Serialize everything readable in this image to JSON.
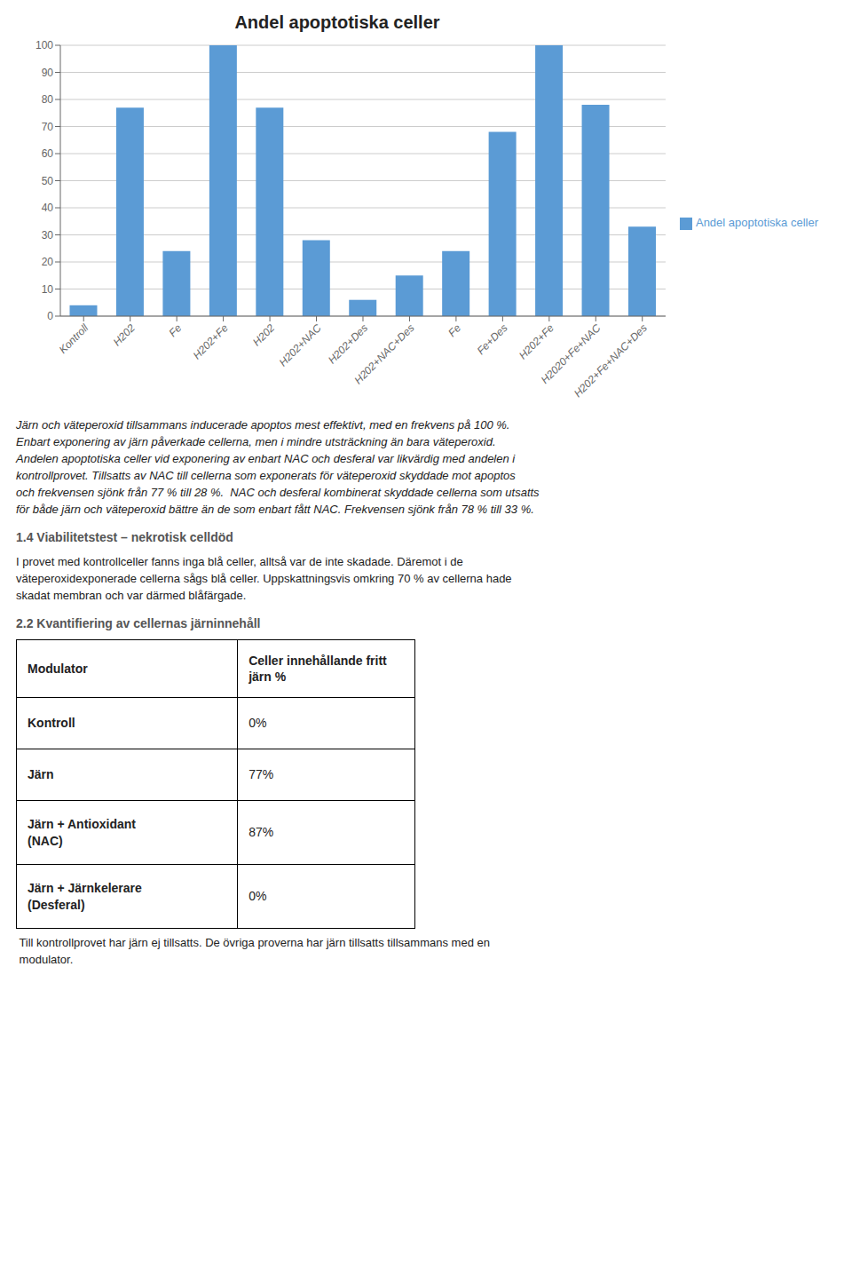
{
  "chart_data": {
    "type": "bar",
    "title": "Andel apoptotiska celler",
    "categories": [
      "Kontroll",
      "H202",
      "Fe",
      "H202+Fe",
      "H202",
      "H202+NAC",
      "H202+Des",
      "H202+NAC+Des",
      "Fe",
      "Fe+Des",
      "H202+Fe",
      "H2020+Fe+NAC",
      "H202+Fe+NAC+Des"
    ],
    "series": [
      {
        "name": "Andel apoptotiska celler",
        "color": "#5B9BD5",
        "values": [
          4,
          77,
          24,
          100,
          77,
          28,
          6,
          15,
          24,
          68,
          100,
          78,
          33
        ]
      }
    ],
    "ylim": [
      0,
      100
    ],
    "yticks": [
      0,
      10,
      20,
      30,
      40,
      50,
      60,
      70,
      80,
      90,
      100
    ],
    "grid": true,
    "legend": "right"
  },
  "text": {
    "paragraph1_lines": [
      "Järn och väteperoxid tillsammans inducerade apoptos mest effektivt, med en frekvens på 100 %.",
      "Enbart exponering av järn påverkade cellerna, men i mindre utsträckning än bara väteperoxid.",
      "Andelen apoptotiska celler vid exponering av enbart NAC och desferal var likvärdig med andelen i",
      "kontrollprovet. Tillsatts av NAC till cellerna som exponerats för väteperoxid skyddade mot apoptos",
      "och frekvensen sjönk från 77 % till 28 %.  NAC och desferal kombinerat skyddade cellerna som utsatts",
      "för både järn och väteperoxid bättre än de som enbart fått NAC. Frekvensen sjönk från 78 % till 33 %."
    ],
    "heading2": "1.4 Viabilitetstest – nekrotisk celldöd",
    "paragraph2_lines": [
      "I provet med kontrollceller fanns inga blå celler, alltså var de inte skadade. Däremot i de",
      "väteperoxidexponerade cellerna sågs blå celler. Uppskattningsvis omkring 70 % av cellerna hade",
      "skadat membran och var därmed blåfärgade."
    ],
    "heading3": "2.2 Kvantifiering av cellernas järninnehåll",
    "table": {
      "headers": [
        "Modulator",
        "Celler innehållande fritt\njärn %"
      ],
      "rows": [
        [
          "Kontroll",
          "0%"
        ],
        [
          "Järn",
          "77%"
        ],
        [
          "Järn + Antioxidant\n(NAC)",
          "87%"
        ],
        [
          "Järn + Järnkelerare\n(Desferal)",
          "0%"
        ]
      ]
    },
    "footnote_lines": [
      " Till kontrollprovet har järn ej tillsatts. De övriga proverna har järn tillsatts tillsammans med en",
      " modulator."
    ]
  }
}
